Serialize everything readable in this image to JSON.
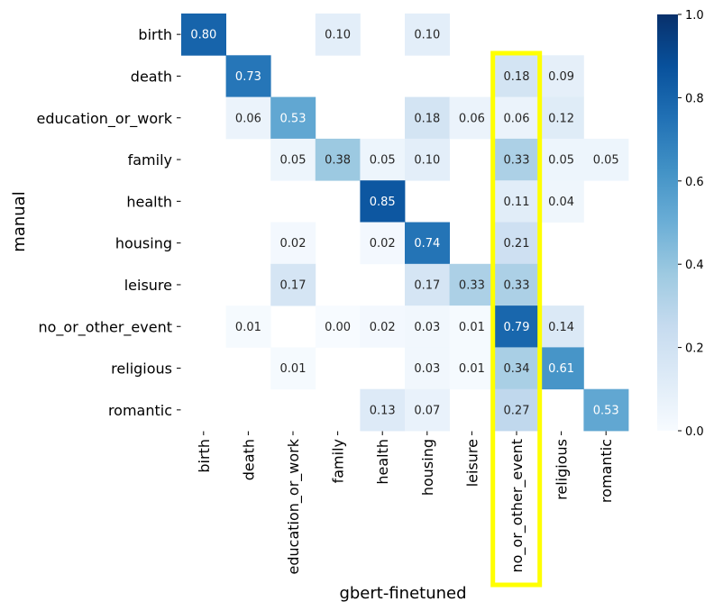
{
  "chart_data": {
    "type": "heatmap",
    "xlabel": "gbert-finetuned",
    "ylabel": "manual",
    "x_categories": [
      "birth",
      "death",
      "education_or_work",
      "family",
      "health",
      "housing",
      "leisure",
      "no_or_other_event",
      "religious",
      "romantic"
    ],
    "y_categories": [
      "birth",
      "death",
      "education_or_work",
      "family",
      "health",
      "housing",
      "leisure",
      "no_or_other_event",
      "religious",
      "romantic"
    ],
    "values": [
      [
        0.8,
        null,
        null,
        0.1,
        null,
        0.1,
        null,
        null,
        null,
        null
      ],
      [
        null,
        0.73,
        null,
        null,
        null,
        null,
        null,
        0.18,
        0.09,
        null
      ],
      [
        null,
        0.06,
        0.53,
        null,
        null,
        0.18,
        0.06,
        0.06,
        0.12,
        null
      ],
      [
        null,
        null,
        0.05,
        0.38,
        0.05,
        0.1,
        null,
        0.33,
        0.05,
        0.05
      ],
      [
        null,
        null,
        null,
        null,
        0.85,
        null,
        null,
        0.11,
        0.04,
        null
      ],
      [
        null,
        null,
        0.02,
        null,
        0.02,
        0.74,
        null,
        0.21,
        null,
        null
      ],
      [
        null,
        null,
        0.17,
        null,
        null,
        0.17,
        0.33,
        0.33,
        null,
        null
      ],
      [
        null,
        0.01,
        null,
        0.0,
        0.02,
        0.03,
        0.01,
        0.79,
        0.14,
        null
      ],
      [
        null,
        null,
        0.01,
        null,
        null,
        0.03,
        0.01,
        0.34,
        0.61,
        null
      ],
      [
        null,
        null,
        null,
        null,
        0.13,
        0.07,
        null,
        0.27,
        null,
        0.53
      ]
    ],
    "value_format": "0.00",
    "colorbar": {
      "min": 0.0,
      "max": 1.0,
      "ticks": [
        "0.0",
        "0.2",
        "0.4",
        "0.6",
        "0.8",
        "1.0"
      ],
      "colormap": "Blues"
    },
    "highlight_column": "no_or_other_event",
    "highlight_color": "#ffff00"
  }
}
